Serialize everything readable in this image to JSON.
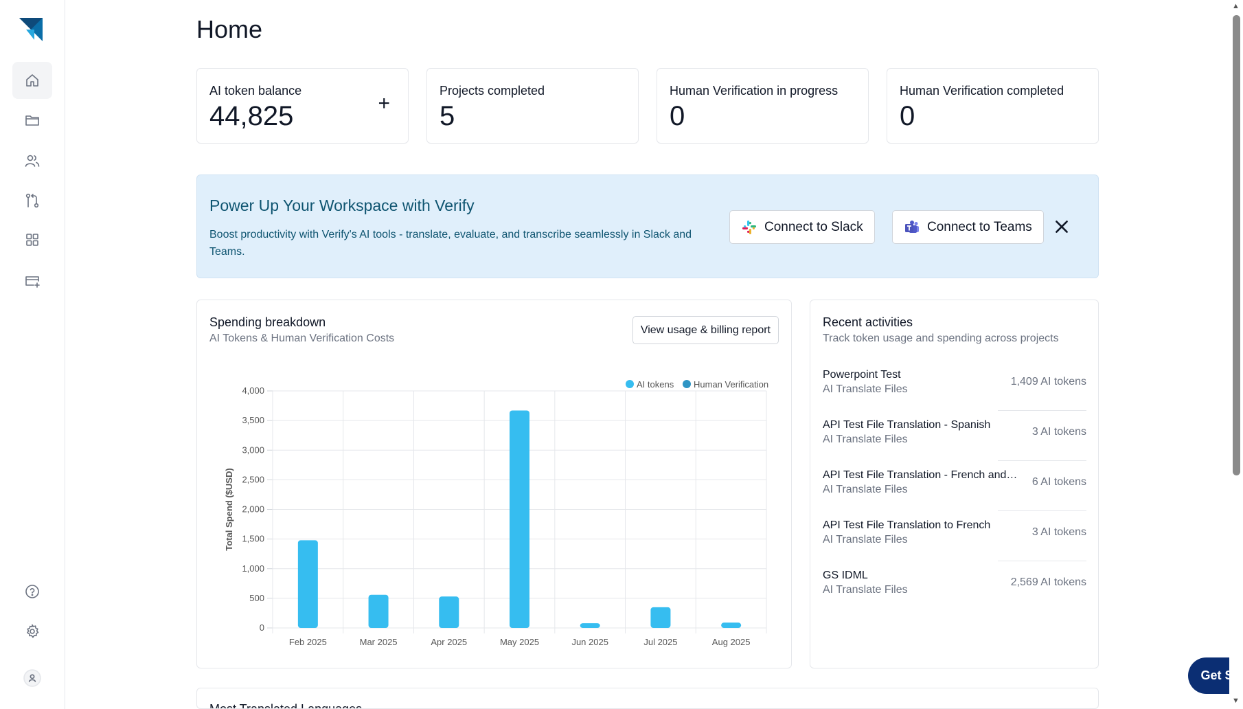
{
  "page": {
    "title": "Home"
  },
  "sidebar": {
    "items": [
      {
        "name": "home-icon",
        "active": true
      },
      {
        "name": "folder-icon",
        "active": false
      },
      {
        "name": "users-icon",
        "active": false
      },
      {
        "name": "workflow-icon",
        "active": false
      },
      {
        "name": "apps-grid-icon",
        "active": false
      },
      {
        "name": "billing-card-icon",
        "active": false
      },
      {
        "name": "help-icon",
        "active": false
      },
      {
        "name": "gear-icon",
        "active": false
      },
      {
        "name": "user-avatar-icon",
        "active": false
      }
    ]
  },
  "stats": [
    {
      "label": "AI token balance",
      "value": "44,825",
      "action": "+"
    },
    {
      "label": "Projects completed",
      "value": "5"
    },
    {
      "label": "Human Verification in progress",
      "value": "0"
    },
    {
      "label": "Human Verification completed",
      "value": "0"
    }
  ],
  "banner": {
    "title": "Power Up Your Workspace with Verify",
    "text": "Boost productivity with Verify's AI tools - translate, evaluate, and transcribe seamlessly in Slack and Teams.",
    "slack_label": "Connect to Slack",
    "teams_label": "Connect to Teams"
  },
  "spending": {
    "title": "Spending breakdown",
    "subtitle": "AI Tokens & Human Verification Costs",
    "billing_button": "View usage & billing report"
  },
  "chart_data": {
    "type": "bar",
    "categories": [
      "Feb 2025",
      "Mar 2025",
      "Apr 2025",
      "May 2025",
      "Jun 2025",
      "Jul 2025",
      "Aug 2025"
    ],
    "series": [
      {
        "name": "AI tokens",
        "values": [
          1480,
          560,
          530,
          3670,
          80,
          350,
          90
        ],
        "color": "#36bdf0"
      },
      {
        "name": "Human Verification",
        "values": [
          0,
          0,
          0,
          0,
          0,
          0,
          0
        ],
        "color": "#2f95c4"
      }
    ],
    "ylabel": "Total Spend ($USD)",
    "ylim": [
      0,
      4000
    ],
    "yticks": [
      0,
      500,
      1000,
      1500,
      2000,
      2500,
      3000,
      3500,
      4000
    ],
    "ytick_labels": [
      "0",
      "500",
      "1,000",
      "1,500",
      "2,000",
      "2,500",
      "3,000",
      "3,500",
      "4,000"
    ],
    "grid": true,
    "legend": "top-right"
  },
  "recent": {
    "title": "Recent activities",
    "subtitle": "Track token usage and spending across projects",
    "items": [
      {
        "name": "Powerpoint Test",
        "type": "AI Translate Files",
        "tokens": "1,409 AI tokens"
      },
      {
        "name": "API Test File Translation - Spanish",
        "type": "AI Translate Files",
        "tokens": "3 AI tokens"
      },
      {
        "name": "API Test File Translation - French and…",
        "type": "AI Translate Files",
        "tokens": "6 AI tokens"
      },
      {
        "name": "API Test File Translation to French",
        "type": "AI Translate Files",
        "tokens": "3 AI tokens"
      },
      {
        "name": "GS IDML",
        "type": "AI Translate Files",
        "tokens": "2,569 AI tokens"
      }
    ]
  },
  "languages": {
    "title": "Most Translated Languages"
  },
  "cta": {
    "label": "Get Started"
  },
  "colors": {
    "accent": "#0b2e73",
    "banner_bg": "#e0effb",
    "banner_text": "#0e5470",
    "bar": "#36bdf0"
  }
}
